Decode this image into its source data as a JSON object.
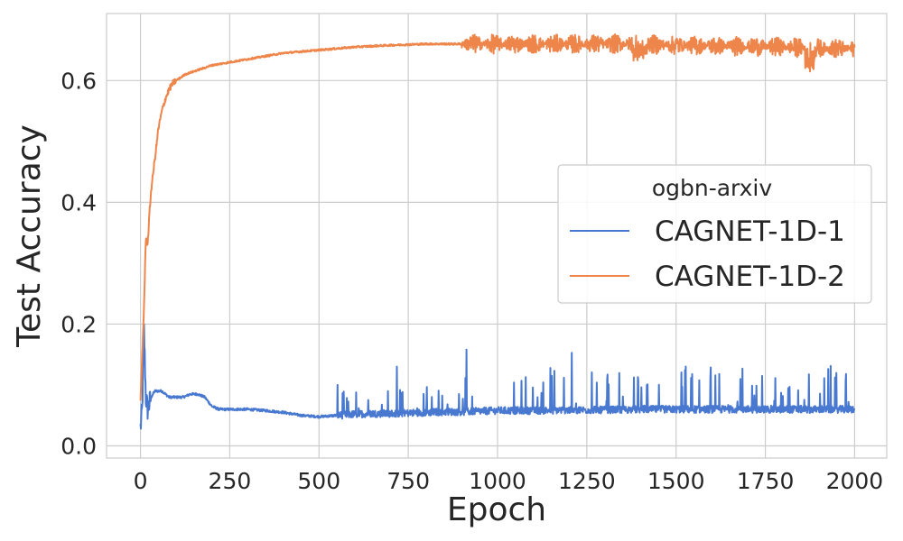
{
  "chart_data": {
    "type": "line",
    "title": "",
    "xlabel": "Epoch",
    "ylabel": "Test Accuracy",
    "xlim": [
      -95,
      2090
    ],
    "ylim": [
      -0.02,
      0.71
    ],
    "x_ticks": [
      0,
      250,
      500,
      750,
      1000,
      1250,
      1500,
      1750,
      2000
    ],
    "x_tick_labels": [
      "0",
      "250",
      "500",
      "750",
      "1000",
      "1250",
      "1500",
      "1750",
      "2000"
    ],
    "y_ticks": [
      0.0,
      0.2,
      0.4,
      0.6
    ],
    "y_tick_labels": [
      "0.0",
      "0.2",
      "0.4",
      "0.6"
    ],
    "grid": true,
    "legend": {
      "title": "ogbn-arxiv",
      "placement": "center-right",
      "entries": [
        "CAGNET-1D-1",
        "CAGNET-1D-2"
      ]
    },
    "series": [
      {
        "name": "CAGNET-1D-1",
        "color": "#4878d0",
        "x": [
          0,
          5,
          10,
          15,
          20,
          25,
          30,
          40,
          50,
          60,
          80,
          100,
          120,
          140,
          160,
          180,
          200,
          220,
          250,
          300,
          350,
          400,
          450,
          500,
          550,
          600,
          650,
          700,
          750,
          800,
          850,
          900,
          950,
          1000,
          1100,
          1200,
          1300,
          1400,
          1500,
          1600,
          1700,
          1800,
          1900,
          2000
        ],
        "y": [
          0.03,
          0.06,
          0.19,
          0.08,
          0.06,
          0.07,
          0.08,
          0.09,
          0.09,
          0.09,
          0.08,
          0.08,
          0.08,
          0.085,
          0.085,
          0.08,
          0.065,
          0.06,
          0.06,
          0.06,
          0.058,
          0.055,
          0.05,
          0.048,
          0.05,
          0.052,
          0.053,
          0.053,
          0.054,
          0.055,
          0.056,
          0.056,
          0.057,
          0.058,
          0.058,
          0.059,
          0.059,
          0.06,
          0.06,
          0.06,
          0.06,
          0.06,
          0.06,
          0.06
        ],
        "noise_level": "high oscillation after epoch 550, spikes up to about 0.16"
      },
      {
        "name": "CAGNET-1D-2",
        "color": "#ee854a",
        "x": [
          0,
          5,
          10,
          15,
          20,
          25,
          30,
          40,
          50,
          60,
          70,
          80,
          90,
          100,
          125,
          150,
          200,
          250,
          300,
          350,
          400,
          500,
          600,
          700,
          800,
          900,
          1000,
          1100,
          1200,
          1300,
          1400,
          1500,
          1600,
          1700,
          1800,
          1900,
          2000
        ],
        "y": [
          0.07,
          0.15,
          0.23,
          0.34,
          0.33,
          0.38,
          0.42,
          0.47,
          0.52,
          0.55,
          0.57,
          0.585,
          0.595,
          0.6,
          0.61,
          0.615,
          0.625,
          0.63,
          0.635,
          0.64,
          0.645,
          0.65,
          0.655,
          0.658,
          0.66,
          0.66,
          0.66,
          0.66,
          0.66,
          0.66,
          0.66,
          0.658,
          0.657,
          0.656,
          0.655,
          0.653,
          0.652
        ],
        "noise_level": "oscillation grows after epoch 900, dips to about 0.61 near epoch 1875"
      }
    ]
  }
}
